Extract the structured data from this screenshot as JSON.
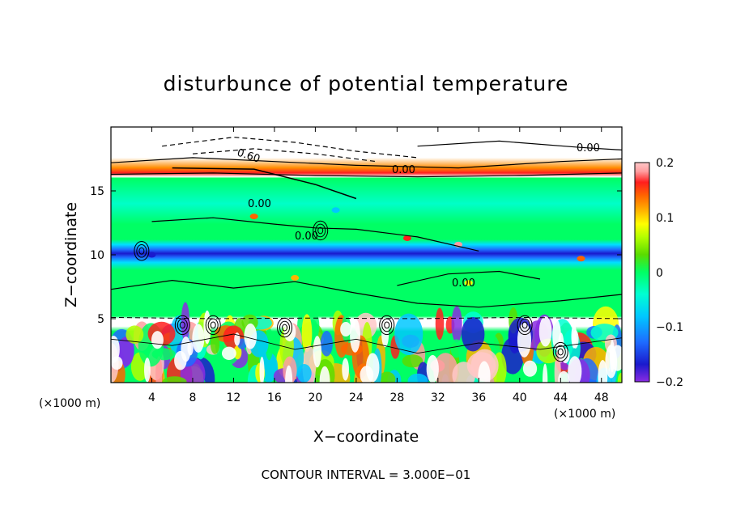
{
  "chart_data": {
    "type": "heatmap",
    "title": "disturbunce of potential temperature",
    "xlabel": "X−coordinate",
    "ylabel": "Z−coordinate",
    "x_unit": "(×1000 m)",
    "x_unit_right": "(×1000 m)",
    "xlim": [
      0,
      50
    ],
    "ylim": [
      0,
      20
    ],
    "xticks": [
      4,
      8,
      12,
      16,
      20,
      24,
      28,
      32,
      36,
      40,
      44,
      48
    ],
    "yticks": [
      5,
      10,
      15
    ],
    "contour_labels": [
      "0.60",
      "0.00",
      "0.00",
      "0.00",
      "0.00",
      "0.00"
    ],
    "colorbar": {
      "range": [
        -0.2,
        0.2
      ],
      "ticks": [
        "0.2",
        "0.1",
        "0",
        "−0.1",
        "−0.2"
      ],
      "colors": [
        "#8a2be2",
        "#1a1acd",
        "#1e6bff",
        "#00c8ff",
        "#00ffd2",
        "#00ff64",
        "#5adc00",
        "#b4ff00",
        "#ffff00",
        "#ffb400",
        "#ff6400",
        "#ff1e1e",
        "#ff9ea0",
        "#ffc8c8"
      ]
    },
    "footer": "CONTOUR INTERVAL = 3.000E−01",
    "bands": [
      {
        "z_range": [
          17.5,
          20
        ],
        "description": "white with dashed/solid contours"
      },
      {
        "z_range": [
          16,
          17.5
        ],
        "description": "orange-red band"
      },
      {
        "z_range": [
          12,
          16
        ],
        "description": "green/cyan"
      },
      {
        "z_range": [
          9.5,
          10.8
        ],
        "description": "blue band"
      },
      {
        "z_range": [
          5,
          9.5
        ],
        "description": "green"
      },
      {
        "z_range": [
          0,
          5
        ],
        "description": "turbulent multicolor"
      }
    ]
  }
}
